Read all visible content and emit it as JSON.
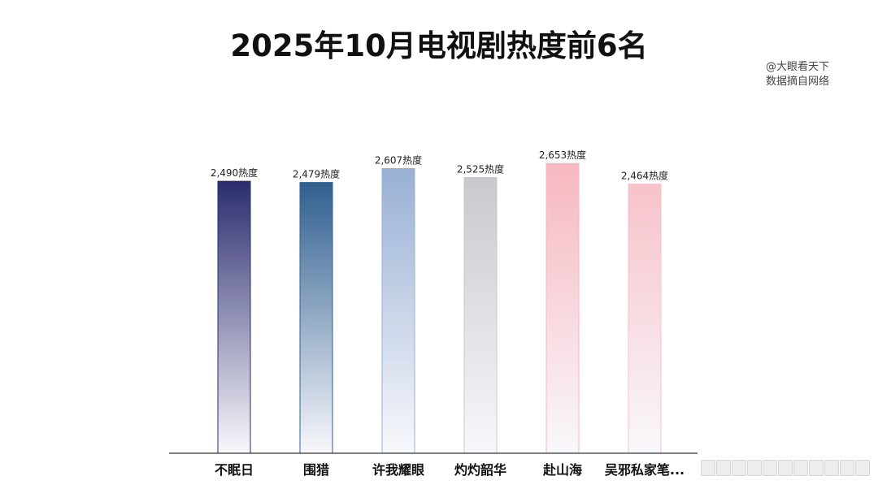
{
  "title": "2025年10月电视剧热度前6名",
  "source": {
    "line1": "@大眼看天下",
    "line2": "数据摘自网络"
  },
  "chart_data": {
    "type": "bar",
    "title": "2025年10月电视剧热度前6名",
    "categories": [
      "不眠日",
      "围猎",
      "许我耀眼",
      "灼灼韶华",
      "赴山海",
      "吴邪私家笔..."
    ],
    "values": [
      2490,
      2479,
      2607,
      2525,
      2653,
      2464
    ],
    "data_labels": [
      "2,490热度",
      "2,479热度",
      "2,607热度",
      "2,525热度",
      "2,653热度",
      "2,464热度"
    ],
    "ylim": [
      0,
      2900
    ],
    "grid": false,
    "legend": "none",
    "colors": [
      "#2b2c6e",
      "#2f5f8f",
      "#98b0d4",
      "#c9c9cd",
      "#f7b7c0",
      "#f7c2c9"
    ]
  }
}
